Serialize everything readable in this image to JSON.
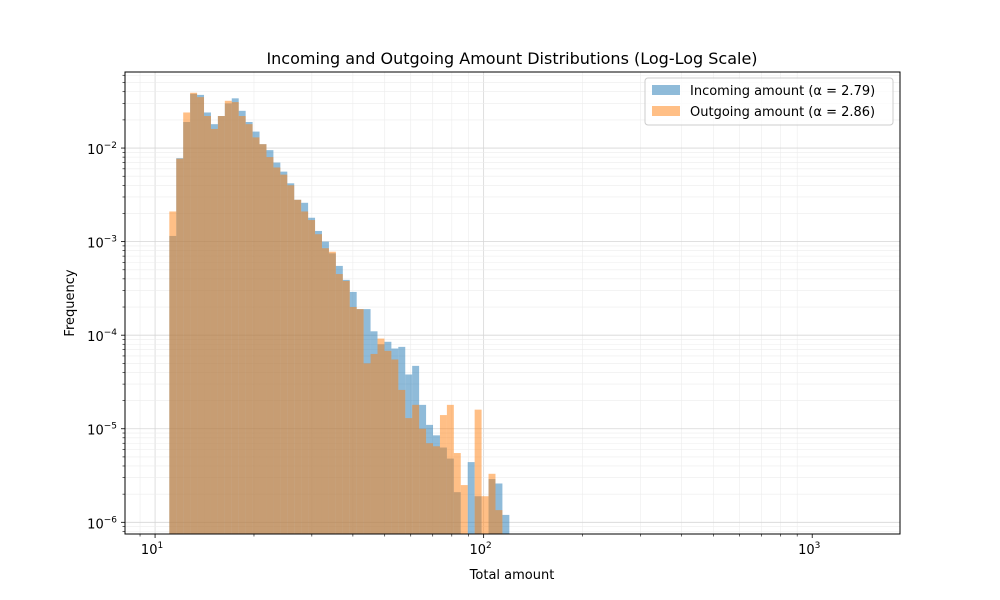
{
  "chart_data": {
    "type": "histogram",
    "title": "Incoming and Outgoing Amount Distributions (Log-Log Scale)",
    "xlabel": "Total amount",
    "ylabel": "Frequency",
    "x_scale": "log",
    "y_scale": "log",
    "xlim": [
      8.1,
      1850
    ],
    "ylim": [
      7.5e-07,
      0.065
    ],
    "grid": true,
    "legend_position": "upper right",
    "x_ticks": [
      {
        "value": 10,
        "base": "10",
        "exp": "1"
      },
      {
        "value": 100,
        "base": "10",
        "exp": "2"
      },
      {
        "value": 1000,
        "base": "10",
        "exp": "3"
      }
    ],
    "y_ticks": [
      {
        "value": 1e-06,
        "base": "10",
        "exp": "−6"
      },
      {
        "value": 1e-05,
        "base": "10",
        "exp": "−5"
      },
      {
        "value": 0.0001,
        "base": "10",
        "exp": "−4"
      },
      {
        "value": 0.001,
        "base": "10",
        "exp": "−3"
      },
      {
        "value": 0.01,
        "base": "10",
        "exp": "−2"
      }
    ],
    "series": [
      {
        "name": "Incoming amount (α = 2.79)",
        "color": "#1f77b4",
        "opacity": 0.5,
        "bin_start": 11.05,
        "bin_log_width": 0.02112,
        "values": [
          0.00115,
          0.0078,
          0.019,
          0.038,
          0.037,
          0.024,
          0.018,
          0.022,
          0.03,
          0.034,
          0.025,
          0.019,
          0.015,
          0.011,
          0.0095,
          0.007,
          0.0056,
          0.0042,
          0.0028,
          0.0026,
          0.0018,
          0.0013,
          0.001,
          0.00075,
          0.00055,
          0.00039,
          0.00029,
          0.00019,
          0.00019,
          0.00011,
          8e-05,
          8.5e-05,
          7.2e-05,
          7.5e-05,
          3.8e-05,
          4.7e-05,
          1.8e-05,
          1.1e-05,
          8.5e-06,
          6.3e-06,
          4.8e-06,
          2.1e-06,
          0,
          4.4e-06,
          1.9e-06,
          0,
          2.9e-06,
          2.6e-06,
          1.2e-06
        ]
      },
      {
        "name": "Outgoing amount (α = 2.86)",
        "color": "#ff7f0e",
        "opacity": 0.5,
        "bin_start": 11.05,
        "bin_log_width": 0.02112,
        "values": [
          0.0021,
          0.0077,
          0.024,
          0.039,
          0.035,
          0.022,
          0.016,
          0.022,
          0.032,
          0.031,
          0.022,
          0.018,
          0.013,
          0.011,
          0.008,
          0.0062,
          0.0052,
          0.004,
          0.0028,
          0.0021,
          0.0017,
          0.0012,
          0.00085,
          0.00078,
          0.00045,
          0.00038,
          0.0002,
          0.00019,
          5e-05,
          6.3e-05,
          9.2e-05,
          6.8e-05,
          5.5e-05,
          2.6e-05,
          1.3e-05,
          1.8e-05,
          1e-05,
          7e-06,
          6.5e-06,
          1.4e-05,
          1.8e-05,
          5.5e-06,
          2.5e-06,
          0,
          1.6e-05,
          1.9e-06,
          3.3e-06,
          1.35e-06,
          0
        ]
      }
    ]
  }
}
